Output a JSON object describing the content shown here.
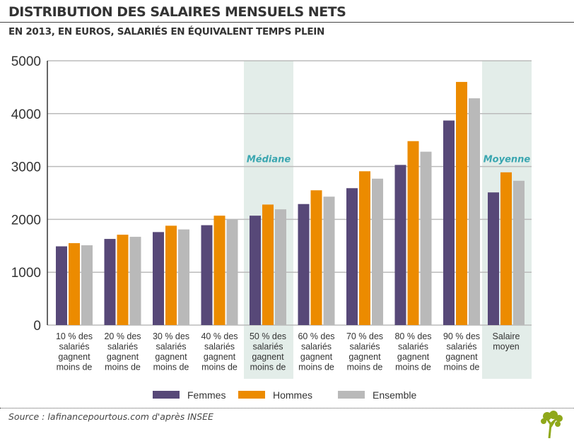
{
  "header": {
    "title": "DISTRIBUTION DES SALAIRES MENSUELS NETS",
    "subtitle": "EN 2013, EN EUROS, SALARIÉS EN ÉQUIVALENT TEMPS PLEIN"
  },
  "chart_data": {
    "type": "bar",
    "title": "DISTRIBUTION DES SALAIRES MENSUELS NETS",
    "subtitle": "EN 2013, EN EUROS, SALARIÉS EN ÉQUIVALENT TEMPS PLEIN",
    "categories": [
      [
        "10 % des",
        "salariés",
        "gagnent",
        "moins de"
      ],
      [
        "20 % des",
        "salariés",
        "gagnent",
        "moins de"
      ],
      [
        "30 % des",
        "salariés",
        "gagnent",
        "moins de"
      ],
      [
        "40 % des",
        "salariés",
        "gagnent",
        "moins de"
      ],
      [
        "50 % des",
        "salariés",
        "gagnent",
        "moins de"
      ],
      [
        "60 % des",
        "salariés",
        "gagnent",
        "moins de"
      ],
      [
        "70 % des",
        "salariés",
        "gagnent",
        "moins de"
      ],
      [
        "80 % des",
        "salariés",
        "gagnent",
        "moins de"
      ],
      [
        "90 % des",
        "salariés",
        "gagnent",
        "moins de"
      ],
      [
        "Salaire",
        "moyen"
      ]
    ],
    "series": [
      {
        "name": "Femmes",
        "color": "#574878",
        "values": [
          1490,
          1630,
          1760,
          1890,
          2070,
          2290,
          2590,
          3030,
          3870,
          2510
        ]
      },
      {
        "name": "Hommes",
        "color": "#ec8b00",
        "values": [
          1550,
          1710,
          1880,
          2070,
          2280,
          2550,
          2910,
          3480,
          4600,
          2890
        ]
      },
      {
        "name": "Ensemble",
        "color": "#b9b9b9",
        "values": [
          1510,
          1670,
          1810,
          2000,
          2190,
          2430,
          2770,
          3280,
          4290,
          2730
        ]
      }
    ],
    "yticks": [
      0,
      1000,
      2000,
      3000,
      4000,
      5000
    ],
    "ylim": [
      0,
      5000
    ],
    "grid": true,
    "legend": "bottom",
    "highlights": [
      {
        "category_index": 4,
        "label": "Médiane"
      },
      {
        "category_index": 9,
        "label": "Moyenne"
      }
    ],
    "highlight_color": "#e3ede9",
    "highlight_label_color": "#3aa6b0"
  },
  "footer": {
    "source": "Source : lafinancepourtous.com d'après INSEE",
    "logo_color": "#8fa81a"
  }
}
